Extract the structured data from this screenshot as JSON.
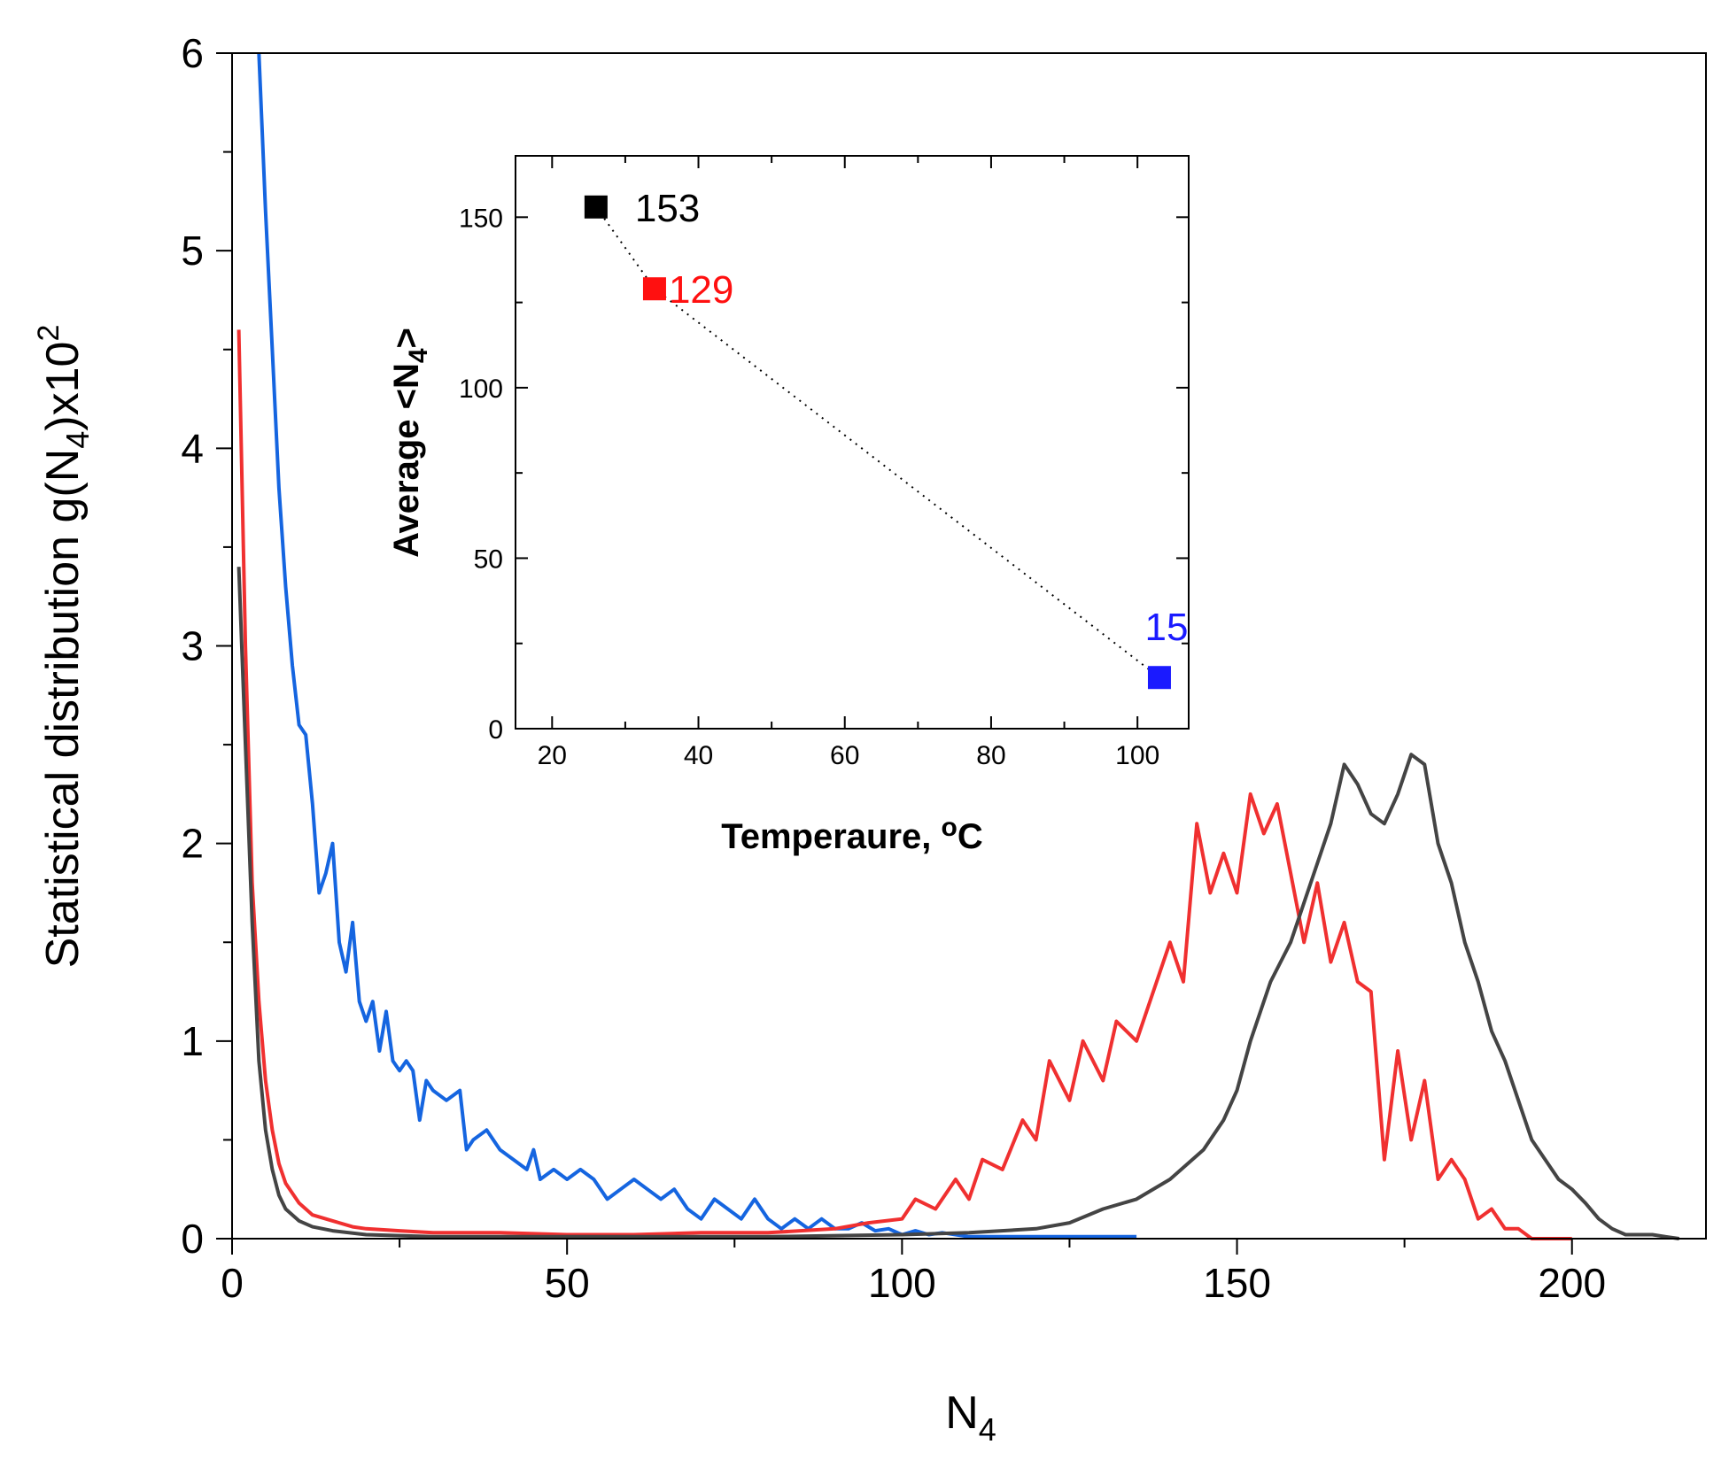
{
  "chart_data": [
    {
      "type": "line",
      "xlabel": {
        "base": "N",
        "sub": "4"
      },
      "ylabel": {
        "prefix": "Statistical distribution g(N",
        "sub": "4",
        "mid": ")x10",
        "sup": "2"
      },
      "xlim": [
        0,
        220
      ],
      "ylim": [
        0,
        6
      ],
      "xticks": [
        0,
        50,
        100,
        150,
        200
      ],
      "yticks": [
        0,
        1,
        2,
        3,
        4,
        5,
        6
      ],
      "series": [
        {
          "name": "blue",
          "color": "#1565e0",
          "x": [
            4,
            5,
            6,
            7,
            8,
            9,
            10,
            11,
            12,
            13,
            14,
            15,
            16,
            17,
            18,
            19,
            20,
            21,
            22,
            23,
            24,
            25,
            26,
            27,
            28,
            29,
            30,
            32,
            34,
            35,
            36,
            38,
            40,
            42,
            44,
            45,
            46,
            48,
            50,
            52,
            54,
            56,
            58,
            60,
            62,
            64,
            66,
            68,
            70,
            72,
            74,
            76,
            78,
            80,
            82,
            84,
            86,
            88,
            90,
            92,
            94,
            96,
            98,
            100,
            102,
            104,
            106,
            108,
            110,
            115,
            120,
            125,
            130,
            135
          ],
          "y": [
            6.0,
            5.2,
            4.5,
            3.8,
            3.3,
            2.9,
            2.6,
            2.55,
            2.2,
            1.75,
            1.85,
            2.0,
            1.5,
            1.35,
            1.6,
            1.2,
            1.1,
            1.2,
            0.95,
            1.15,
            0.9,
            0.85,
            0.9,
            0.85,
            0.6,
            0.8,
            0.75,
            0.7,
            0.75,
            0.45,
            0.5,
            0.55,
            0.45,
            0.4,
            0.35,
            0.45,
            0.3,
            0.35,
            0.3,
            0.35,
            0.3,
            0.2,
            0.25,
            0.3,
            0.25,
            0.2,
            0.25,
            0.15,
            0.1,
            0.2,
            0.15,
            0.1,
            0.2,
            0.1,
            0.05,
            0.1,
            0.05,
            0.1,
            0.05,
            0.05,
            0.08,
            0.04,
            0.05,
            0.02,
            0.04,
            0.02,
            0.03,
            0.02,
            0.01,
            0.01,
            0.01,
            0.01,
            0.01,
            0.01
          ]
        },
        {
          "name": "red",
          "color": "#f03030",
          "x": [
            1,
            2,
            3,
            4,
            5,
            6,
            7,
            8,
            10,
            12,
            15,
            18,
            20,
            25,
            30,
            40,
            50,
            60,
            70,
            80,
            90,
            95,
            100,
            102,
            105,
            108,
            110,
            112,
            115,
            118,
            120,
            122,
            125,
            127,
            130,
            132,
            135,
            138,
            140,
            142,
            144,
            146,
            148,
            150,
            152,
            154,
            156,
            158,
            160,
            162,
            164,
            166,
            168,
            170,
            172,
            174,
            176,
            178,
            180,
            182,
            184,
            186,
            188,
            190,
            192,
            194,
            196,
            198,
            200
          ],
          "y": [
            4.6,
            3.0,
            1.8,
            1.2,
            0.8,
            0.55,
            0.38,
            0.28,
            0.18,
            0.12,
            0.09,
            0.06,
            0.05,
            0.04,
            0.03,
            0.03,
            0.02,
            0.02,
            0.03,
            0.03,
            0.05,
            0.08,
            0.1,
            0.2,
            0.15,
            0.3,
            0.2,
            0.4,
            0.35,
            0.6,
            0.5,
            0.9,
            0.7,
            1.0,
            0.8,
            1.1,
            1.0,
            1.3,
            1.5,
            1.3,
            2.1,
            1.75,
            1.95,
            1.75,
            2.25,
            2.05,
            2.2,
            1.85,
            1.5,
            1.8,
            1.4,
            1.6,
            1.3,
            1.25,
            0.4,
            0.95,
            0.5,
            0.8,
            0.3,
            0.4,
            0.3,
            0.1,
            0.15,
            0.05,
            0.05,
            0.0,
            0.0,
            0.0,
            0.0
          ]
        },
        {
          "name": "black",
          "color": "#444444",
          "x": [
            1,
            2,
            3,
            4,
            5,
            6,
            7,
            8,
            10,
            12,
            15,
            20,
            30,
            40,
            60,
            80,
            100,
            110,
            120,
            125,
            130,
            135,
            140,
            145,
            148,
            150,
            152,
            155,
            158,
            160,
            162,
            164,
            166,
            168,
            170,
            172,
            174,
            176,
            178,
            180,
            182,
            184,
            186,
            188,
            190,
            192,
            194,
            196,
            198,
            200,
            202,
            204,
            206,
            208,
            210,
            212,
            214,
            216
          ],
          "y": [
            3.4,
            2.5,
            1.6,
            0.9,
            0.55,
            0.35,
            0.22,
            0.15,
            0.09,
            0.06,
            0.04,
            0.02,
            0.01,
            0.01,
            0.01,
            0.01,
            0.02,
            0.03,
            0.05,
            0.08,
            0.15,
            0.2,
            0.3,
            0.45,
            0.6,
            0.75,
            1.0,
            1.3,
            1.5,
            1.7,
            1.9,
            2.1,
            2.4,
            2.3,
            2.15,
            2.1,
            2.25,
            2.45,
            2.4,
            2.0,
            1.8,
            1.5,
            1.3,
            1.05,
            0.9,
            0.7,
            0.5,
            0.4,
            0.3,
            0.25,
            0.18,
            0.1,
            0.05,
            0.02,
            0.02,
            0.02,
            0.01,
            0.0
          ]
        }
      ]
    },
    {
      "type": "scatter",
      "xlabel": "Temperaure, ",
      "xlabel_unit": {
        "sup": "o",
        "base": "C"
      },
      "ylabel": {
        "prefix": "Average <N",
        "sub": "4",
        "suffix": ">"
      },
      "xlim": [
        15,
        107
      ],
      "ylim": [
        0,
        168
      ],
      "xticks": [
        20,
        40,
        60,
        80,
        100
      ],
      "yticks": [
        0,
        50,
        100,
        150
      ],
      "connector": "dotted",
      "points": [
        {
          "x": 26,
          "y": 153,
          "label": "153",
          "color": "#000000"
        },
        {
          "x": 34,
          "y": 129,
          "label": "129",
          "color": "#ff1010"
        },
        {
          "x": 103,
          "y": 15,
          "label": "15",
          "color": "#1a1aff"
        }
      ]
    }
  ]
}
